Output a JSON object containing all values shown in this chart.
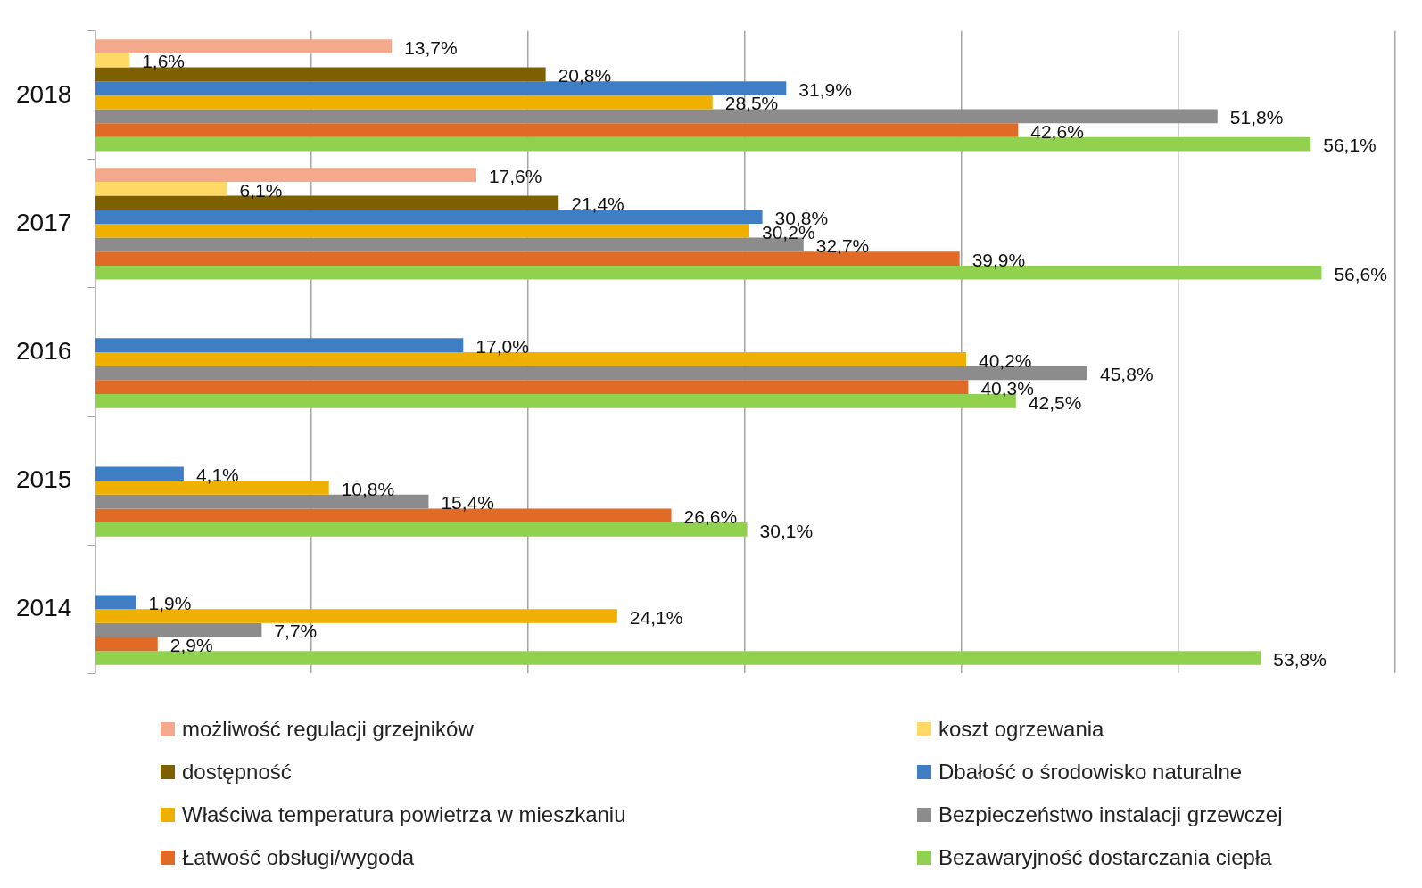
{
  "chart_data": {
    "type": "bar",
    "orientation": "horizontal",
    "categories": [
      "2018",
      "2017",
      "2016",
      "2015",
      "2014"
    ],
    "xlim": [
      0,
      60
    ],
    "xticks": [
      {
        "value": 0,
        "label": null
      },
      {
        "value": 10,
        "label": null
      },
      {
        "value": 20,
        "label": null
      },
      {
        "value": 30,
        "label": null
      },
      {
        "value": 40,
        "label": null
      },
      {
        "value": 50,
        "label": null
      },
      {
        "value": 60,
        "label": null
      }
    ],
    "tick_labels": "y",
    "grid": "x",
    "legend": "bottom",
    "series": [
      {
        "name": "możliwość regulacji grzejników",
        "color": "#f4a88c",
        "values": [
          13.7,
          17.6,
          null,
          null,
          null
        ],
        "value_labels": [
          "13,7%",
          "17,6%",
          null,
          null,
          null
        ]
      },
      {
        "name": "koszt ogrzewania",
        "color": "#ffd966",
        "values": [
          1.6,
          6.1,
          null,
          null,
          null
        ],
        "value_labels": [
          "1,6%",
          "6,1%",
          null,
          null,
          null
        ]
      },
      {
        "name": "dostępność",
        "color": "#7f6000",
        "values": [
          20.8,
          21.4,
          null,
          null,
          null
        ],
        "value_labels": [
          "20,8%",
          "21,4%",
          null,
          null,
          null
        ]
      },
      {
        "name": "Dbałość o środowisko naturalne",
        "color": "#3f7ec4",
        "values": [
          31.9,
          30.8,
          17.0,
          4.1,
          1.9
        ],
        "value_labels": [
          "31,9%",
          "30,8%",
          "17,0%",
          "4,1%",
          "1,9%"
        ]
      },
      {
        "name": "Właściwa temperatura powietrza w mieszkaniu",
        "color": "#f0b000",
        "values": [
          28.5,
          30.2,
          40.2,
          10.8,
          24.1
        ],
        "value_labels": [
          "28,5%",
          "30,2%",
          "40,2%",
          "10,8%",
          "24,1%"
        ]
      },
      {
        "name": "Bezpieczeństwo instalacji grzewczej",
        "color": "#8c8c8c",
        "values": [
          51.8,
          32.7,
          45.8,
          15.4,
          7.7
        ],
        "value_labels": [
          "51,8%",
          "32,7%",
          "45,8%",
          "15,4%",
          "7,7%"
        ]
      },
      {
        "name": "Łatwość obsługi/wygoda",
        "color": "#e06a26",
        "values": [
          42.6,
          39.9,
          40.3,
          26.6,
          2.9
        ],
        "value_labels": [
          "42,6%",
          "39,9%",
          "40,3%",
          "26,6%",
          "2,9%"
        ]
      },
      {
        "name": "Bezawaryjność dostarczania ciepła",
        "color": "#92d050",
        "values": [
          56.1,
          56.6,
          42.5,
          30.1,
          53.8
        ],
        "value_labels": [
          "56,1%",
          "56,6%",
          "42,5%",
          "30,1%",
          "53,8%"
        ]
      }
    ]
  }
}
